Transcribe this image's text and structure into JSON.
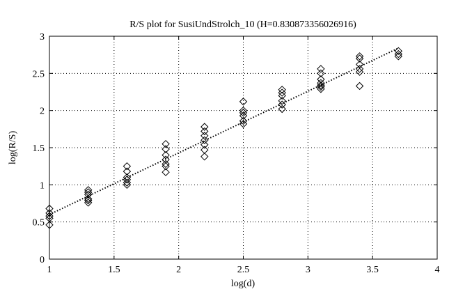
{
  "chart_data": {
    "type": "scatter",
    "title": "R/S plot for SusiUndStrolch_10 (H=0.830873356026916)",
    "xlabel": "log(d)",
    "ylabel": "log(R/S)",
    "xlim": [
      1,
      4
    ],
    "ylim": [
      0,
      3
    ],
    "xticks": [
      "1",
      "1.5",
      "2",
      "2.5",
      "3",
      "3.5",
      "4"
    ],
    "yticks": [
      "0",
      "0.5",
      "1",
      "1.5",
      "2",
      "2.5",
      "3"
    ],
    "grid": true,
    "marker": "diamond",
    "series": [
      {
        "points": [
          [
            1.0,
            0.46
          ],
          [
            1.0,
            0.55
          ],
          [
            1.0,
            0.58
          ],
          [
            1.0,
            0.62
          ],
          [
            1.0,
            0.68
          ],
          [
            1.3,
            0.76
          ],
          [
            1.3,
            0.79
          ],
          [
            1.3,
            0.81
          ],
          [
            1.3,
            0.87
          ],
          [
            1.3,
            0.9
          ],
          [
            1.3,
            0.93
          ],
          [
            1.6,
            1.0
          ],
          [
            1.6,
            1.03
          ],
          [
            1.6,
            1.07
          ],
          [
            1.6,
            1.1
          ],
          [
            1.6,
            1.18
          ],
          [
            1.6,
            1.25
          ],
          [
            1.9,
            1.17
          ],
          [
            1.9,
            1.25
          ],
          [
            1.9,
            1.28
          ],
          [
            1.9,
            1.34
          ],
          [
            1.9,
            1.4
          ],
          [
            1.9,
            1.48
          ],
          [
            1.9,
            1.55
          ],
          [
            2.2,
            1.38
          ],
          [
            2.2,
            1.47
          ],
          [
            2.2,
            1.54
          ],
          [
            2.2,
            1.6
          ],
          [
            2.2,
            1.66
          ],
          [
            2.2,
            1.72
          ],
          [
            2.2,
            1.78
          ],
          [
            2.5,
            1.82
          ],
          [
            2.5,
            1.86
          ],
          [
            2.5,
            1.93
          ],
          [
            2.5,
            1.97
          ],
          [
            2.5,
            2.0
          ],
          [
            2.5,
            2.12
          ],
          [
            2.8,
            2.02
          ],
          [
            2.8,
            2.08
          ],
          [
            2.8,
            2.13
          ],
          [
            2.8,
            2.2
          ],
          [
            2.8,
            2.24
          ],
          [
            2.8,
            2.28
          ],
          [
            3.1,
            2.29
          ],
          [
            3.1,
            2.32
          ],
          [
            3.1,
            2.34
          ],
          [
            3.1,
            2.37
          ],
          [
            3.1,
            2.42
          ],
          [
            3.1,
            2.5
          ],
          [
            3.1,
            2.56
          ],
          [
            3.4,
            2.33
          ],
          [
            3.4,
            2.52
          ],
          [
            3.4,
            2.56
          ],
          [
            3.4,
            2.62
          ],
          [
            3.4,
            2.7
          ],
          [
            3.4,
            2.73
          ],
          [
            3.7,
            2.73
          ],
          [
            3.7,
            2.76
          ],
          [
            3.7,
            2.8
          ]
        ]
      }
    ],
    "fit_line": {
      "style": "dotted",
      "x": [
        1.0,
        3.7
      ],
      "y": [
        0.6,
        2.84
      ]
    }
  }
}
